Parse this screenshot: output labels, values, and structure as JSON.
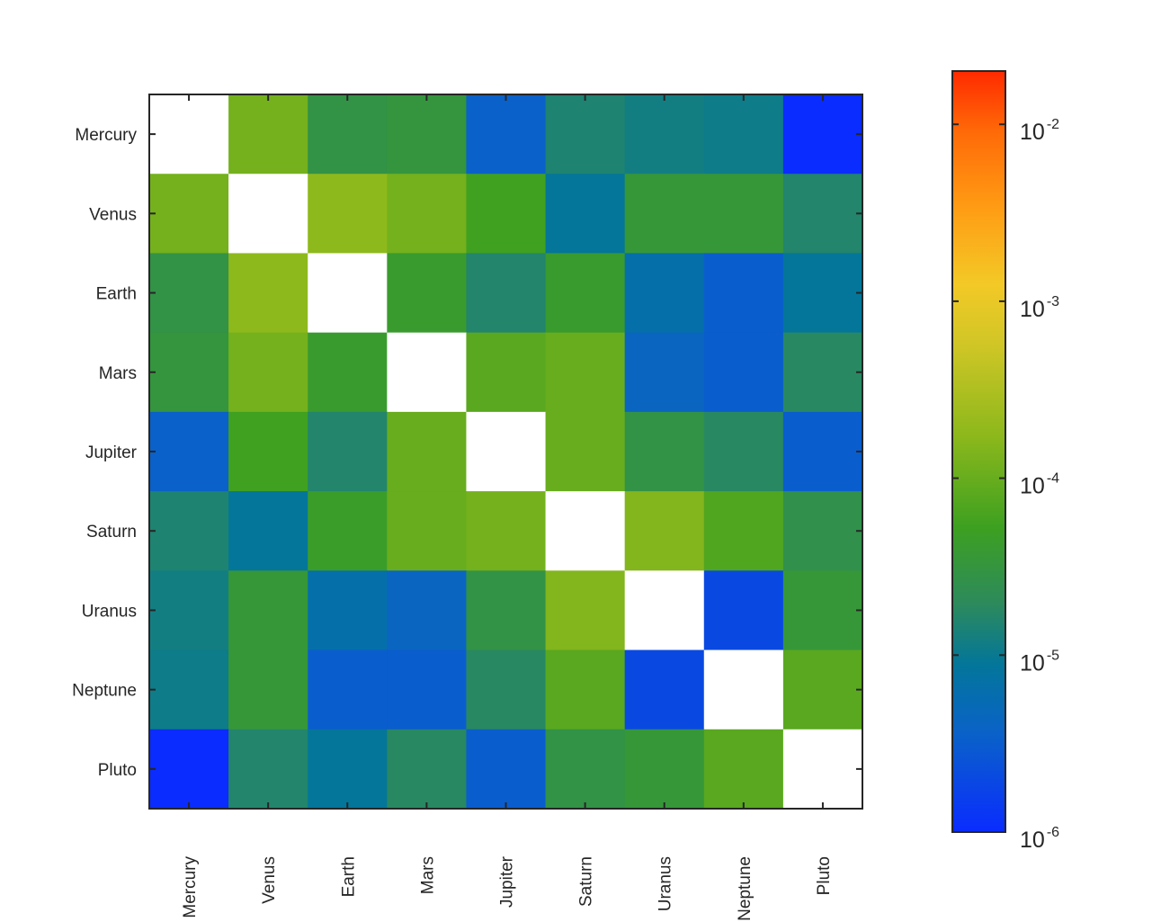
{
  "chart_data": {
    "type": "heatmap",
    "x_categories": [
      "Mercury",
      "Venus",
      "Earth",
      "Mars",
      "Jupiter",
      "Saturn",
      "Uranus",
      "Neptune",
      "Pluto"
    ],
    "y_categories": [
      "Mercury",
      "Venus",
      "Earth",
      "Mars",
      "Jupiter",
      "Saturn",
      "Uranus",
      "Neptune",
      "Pluto"
    ],
    "values": [
      [
        null,
        0.00012,
        2.8e-05,
        3.2e-05,
        3.5e-06,
        1.5e-05,
        1.2e-05,
        1.1e-05,
        1e-06
      ],
      [
        0.00012,
        null,
        0.00018,
        0.00012,
        5.5e-05,
        9e-06,
        3.5e-05,
        3.5e-05,
        1.6e-05
      ],
      [
        2.8e-05,
        0.00018,
        null,
        4.2e-05,
        1.6e-05,
        4.2e-05,
        6.5e-06,
        3.2e-06,
        9e-06
      ],
      [
        3.2e-05,
        0.00012,
        4.2e-05,
        null,
        8e-05,
        0.0001,
        4.2e-06,
        3.2e-06,
        1.8e-05
      ],
      [
        3.5e-06,
        5.5e-05,
        1.6e-05,
        0.0001,
        null,
        0.0001,
        2.8e-05,
        1.8e-05,
        3.2e-06
      ],
      [
        1.5e-05,
        9e-06,
        4.5e-05,
        0.0001,
        0.00012,
        null,
        0.00015,
        7e-05,
        2.6e-05
      ],
      [
        1.2e-05,
        3.5e-05,
        6.5e-06,
        4.2e-06,
        2.8e-05,
        0.00015,
        null,
        2e-06,
        3.5e-05
      ],
      [
        1.1e-05,
        3.5e-05,
        3.2e-06,
        3.2e-06,
        1.8e-05,
        8e-05,
        2e-06,
        null,
        8e-05
      ],
      [
        1e-06,
        1.6e-05,
        9e-06,
        1.8e-05,
        3.2e-06,
        2.8e-05,
        3.5e-05,
        8e-05,
        null
      ]
    ],
    "colorscale": "parula-extended (blue-green-yellow-orange-red)",
    "colorbar": {
      "scale": "log",
      "range": [
        1e-06,
        0.02
      ],
      "ticks": [
        {
          "value": 1e-06,
          "base": "10",
          "exp": "-6"
        },
        {
          "value": 1e-05,
          "base": "10",
          "exp": "-5"
        },
        {
          "value": 0.0001,
          "base": "10",
          "exp": "-4"
        },
        {
          "value": 0.001,
          "base": "10",
          "exp": "-3"
        },
        {
          "value": 0.01,
          "base": "10",
          "exp": "-2"
        }
      ],
      "placement": "right"
    },
    "diagonal_color": "#ffffff",
    "grid": false
  }
}
